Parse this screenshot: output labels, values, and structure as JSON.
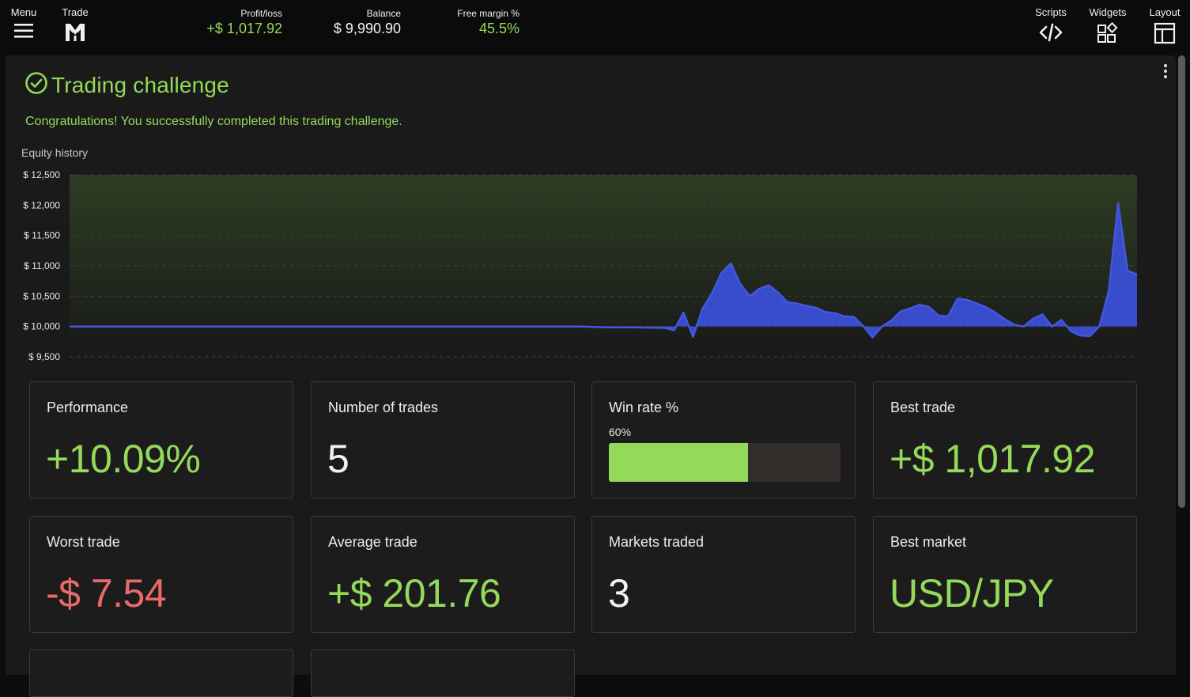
{
  "topbar": {
    "menu_label": "Menu",
    "trade_label": "Trade",
    "scripts_label": "Scripts",
    "widgets_label": "Widgets",
    "layout_label": "Layout",
    "stats": {
      "profit_loss_label": "Profit/loss",
      "profit_loss_value": "+$ 1,017.92",
      "balance_label": "Balance",
      "balance_value": "$ 9,990.90",
      "free_margin_label": "Free margin %",
      "free_margin_value": "45.5%"
    }
  },
  "challenge": {
    "title": "Trading challenge",
    "message": "Congratulations! You successfully completed this trading challenge.",
    "equity_label": "Equity history"
  },
  "colors": {
    "accent_green": "#95d95a",
    "negative_red": "#e86a6a",
    "equity_blue": "#3a4fd6"
  },
  "chart_data": {
    "type": "area",
    "title": "Equity history",
    "xlabel": "",
    "ylabel": "",
    "ylim": [
      9500,
      12500
    ],
    "yticks": [
      12500,
      12000,
      11500,
      11000,
      10500,
      10000,
      9500
    ],
    "ytick_labels": [
      "$ 12,500",
      "$ 12,000",
      "$ 11,500",
      "$ 11,000",
      "$ 10,500",
      "$ 10,000",
      "$ 9,500"
    ],
    "grid": true,
    "baseline": 10000,
    "series": [
      {
        "values": [
          10000,
          10000,
          10000,
          10000,
          10000,
          10000,
          10000,
          10000,
          10000,
          10000,
          10000,
          10000,
          10000,
          10000,
          10000,
          10000,
          10000,
          10000,
          10000,
          10000,
          10000,
          10000,
          10000,
          10000,
          10000,
          10000,
          10000,
          10000,
          10000,
          10000,
          10000,
          10000,
          10000,
          10000,
          10000,
          10000,
          10000,
          10000,
          10000,
          10000,
          10000,
          10000,
          10000,
          10000,
          10000,
          10000,
          10000,
          10000,
          10000,
          10000,
          10000,
          10000,
          10000,
          10000,
          10000,
          9995,
          9990,
          9985,
          9985,
          9985,
          9985,
          9980,
          9980,
          9975,
          9940,
          10230,
          9830,
          10290,
          10550,
          10880,
          11040,
          10700,
          10500,
          10620,
          10680,
          10560,
          10400,
          10380,
          10340,
          10310,
          10240,
          10220,
          10170,
          10160,
          10010,
          9820,
          10000,
          10100,
          10250,
          10300,
          10360,
          10320,
          10180,
          10170,
          10460,
          10440,
          10380,
          10320,
          10230,
          10120,
          10030,
          10000,
          10130,
          10200,
          10000,
          10110,
          9920,
          9850,
          9840,
          10000,
          10580,
          12040,
          10920,
          10860
        ]
      }
    ]
  },
  "cards": [
    {
      "title": "Performance",
      "value": "+10.09%",
      "tone": "green"
    },
    {
      "title": "Number of trades",
      "value": "5",
      "tone": "white"
    },
    {
      "title": "Win rate %",
      "value": "60%",
      "win_rate": 0.6,
      "tone": "bar"
    },
    {
      "title": "Best trade",
      "value": "+$ 1,017.92",
      "tone": "green"
    },
    {
      "title": "Worst trade",
      "value": "-$ 7.54",
      "tone": "red"
    },
    {
      "title": "Average trade",
      "value": "+$ 201.76",
      "tone": "green"
    },
    {
      "title": "Markets traded",
      "value": "3",
      "tone": "white"
    },
    {
      "title": "Best market",
      "value": "USD/JPY",
      "tone": "green"
    }
  ]
}
